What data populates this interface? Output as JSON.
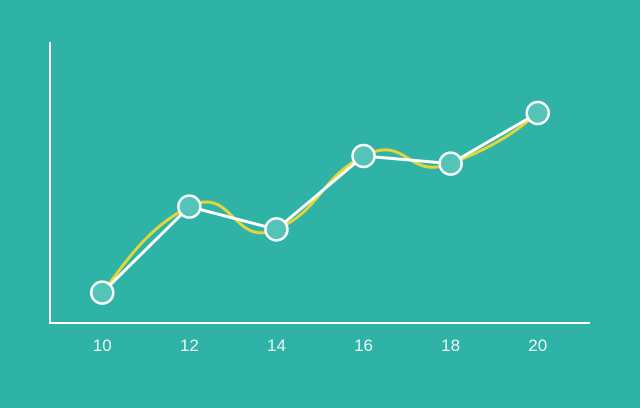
{
  "colors": {
    "background": "#2fb3a6",
    "axis": "#ffffff",
    "straight_line": "#ffffff",
    "smooth_line": "#e4d53a",
    "marker_fill": "#55c4b8",
    "marker_stroke": "#ffffff",
    "tick_text": "#e8f6f4"
  },
  "chart_data": {
    "type": "line",
    "title": "",
    "xlabel": "",
    "ylabel": "",
    "x": [
      10,
      12,
      14,
      16,
      18,
      20
    ],
    "xticks": [
      "10",
      "12",
      "14",
      "16",
      "18",
      "20"
    ],
    "xlim": [
      8.8,
      21.2
    ],
    "ylim": [
      0,
      10
    ],
    "y_ticks_shown": false,
    "grid": false,
    "legend": "none",
    "series": [
      {
        "style": "straight-with-markers",
        "values": [
          1.2,
          4.6,
          3.7,
          6.6,
          6.3,
          8.3
        ]
      },
      {
        "style": "smooth-curve",
        "values": [
          1.2,
          4.6,
          3.7,
          6.6,
          6.3,
          8.3
        ]
      }
    ]
  }
}
